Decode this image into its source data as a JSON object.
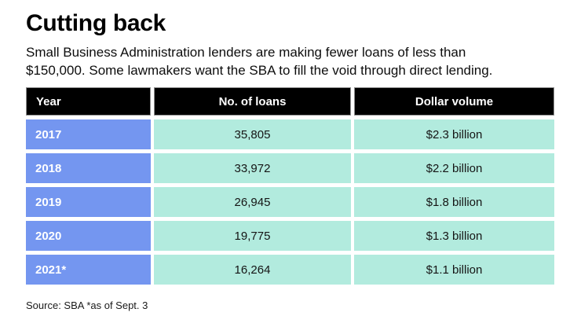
{
  "header": {
    "title": "Cutting back",
    "subtitle_line1": "Small Business Administration lenders are making fewer loans of less than",
    "subtitle_line2": "$150,000. Some lawmakers want the SBA to fill the void through direct lending."
  },
  "table": {
    "columns": [
      "Year",
      "No. of loans",
      "Dollar volume"
    ],
    "rows": [
      {
        "year": "2017",
        "loans": "35,805",
        "volume": "$2.3 billion"
      },
      {
        "year": "2018",
        "loans": "33,972",
        "volume": "$2.2 billion"
      },
      {
        "year": "2019",
        "loans": "26,945",
        "volume": "$1.8 billion"
      },
      {
        "year": "2020",
        "loans": "19,775",
        "volume": "$1.3 billion"
      },
      {
        "year": "2021*",
        "loans": "16,264",
        "volume": "$1.1 billion"
      }
    ]
  },
  "footer": {
    "source": "Source: SBA *as of Sept. 3"
  },
  "colors": {
    "header_bg": "#000000",
    "header_border": "#8f8f8f",
    "year_bg": "#7496F0",
    "data_bg": "#B2EBDE"
  },
  "chart_data": {
    "type": "table",
    "title": "Cutting back",
    "subtitle": "Small Business Administration lenders are making fewer loans of less than $150,000. Some lawmakers want the SBA to fill the void through direct lending.",
    "columns": [
      "Year",
      "No. of loans",
      "Dollar volume"
    ],
    "rows": [
      [
        "2017",
        "35,805",
        "$2.3 billion"
      ],
      [
        "2018",
        "33,972",
        "$2.2 billion"
      ],
      [
        "2019",
        "26,945",
        "$1.8 billion"
      ],
      [
        "2020",
        "19,775",
        "$1.3 billion"
      ],
      [
        "2021*",
        "16,264",
        "$1.1 billion"
      ]
    ],
    "loans_numeric": [
      35805,
      33972,
      26945,
      19775,
      16264
    ],
    "dollar_volume_billions": [
      2.3,
      2.2,
      1.8,
      1.3,
      1.1
    ],
    "source": "Source: SBA *as of Sept. 3"
  }
}
